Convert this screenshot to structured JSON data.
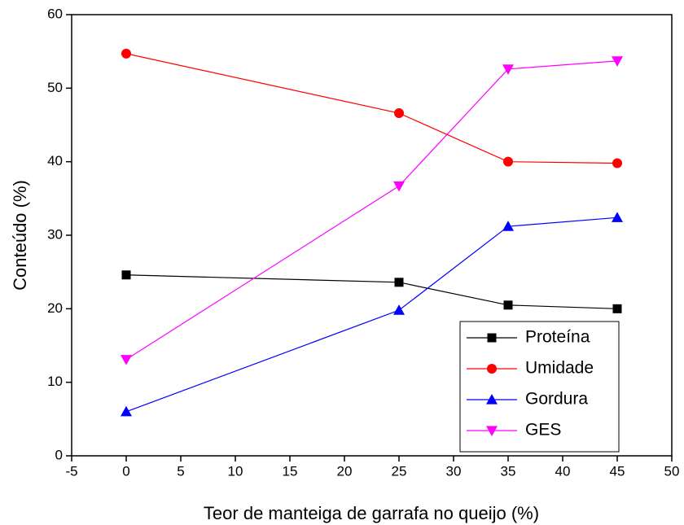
{
  "chart_data": {
    "type": "line",
    "xlabel": "Teor de manteiga de garrafa no queijo (%)",
    "ylabel": "Conteúdo (%)",
    "x": [
      0,
      25,
      35,
      45
    ],
    "series": [
      {
        "name": "Proteína",
        "color": "#000000",
        "marker": "square",
        "values": [
          24.6,
          23.6,
          20.5,
          20.0
        ]
      },
      {
        "name": "Umidade",
        "color": "#ff0000",
        "marker": "circle",
        "values": [
          54.7,
          46.6,
          40.0,
          39.8
        ]
      },
      {
        "name": "Gordura",
        "color": "#0000ff",
        "marker": "triangle-up",
        "values": [
          6.0,
          19.8,
          31.2,
          32.4
        ]
      },
      {
        "name": "GES",
        "color": "#ff00ff",
        "marker": "triangle-down",
        "values": [
          13.1,
          36.7,
          52.6,
          53.7
        ]
      }
    ],
    "xlim": [
      -5,
      50
    ],
    "xticks": [
      -5,
      0,
      5,
      10,
      15,
      20,
      25,
      30,
      35,
      40,
      45,
      50
    ],
    "ylim": [
      0,
      60
    ],
    "yticks": [
      0,
      10,
      20,
      30,
      40,
      50,
      60
    ],
    "legend": "lower right"
  }
}
